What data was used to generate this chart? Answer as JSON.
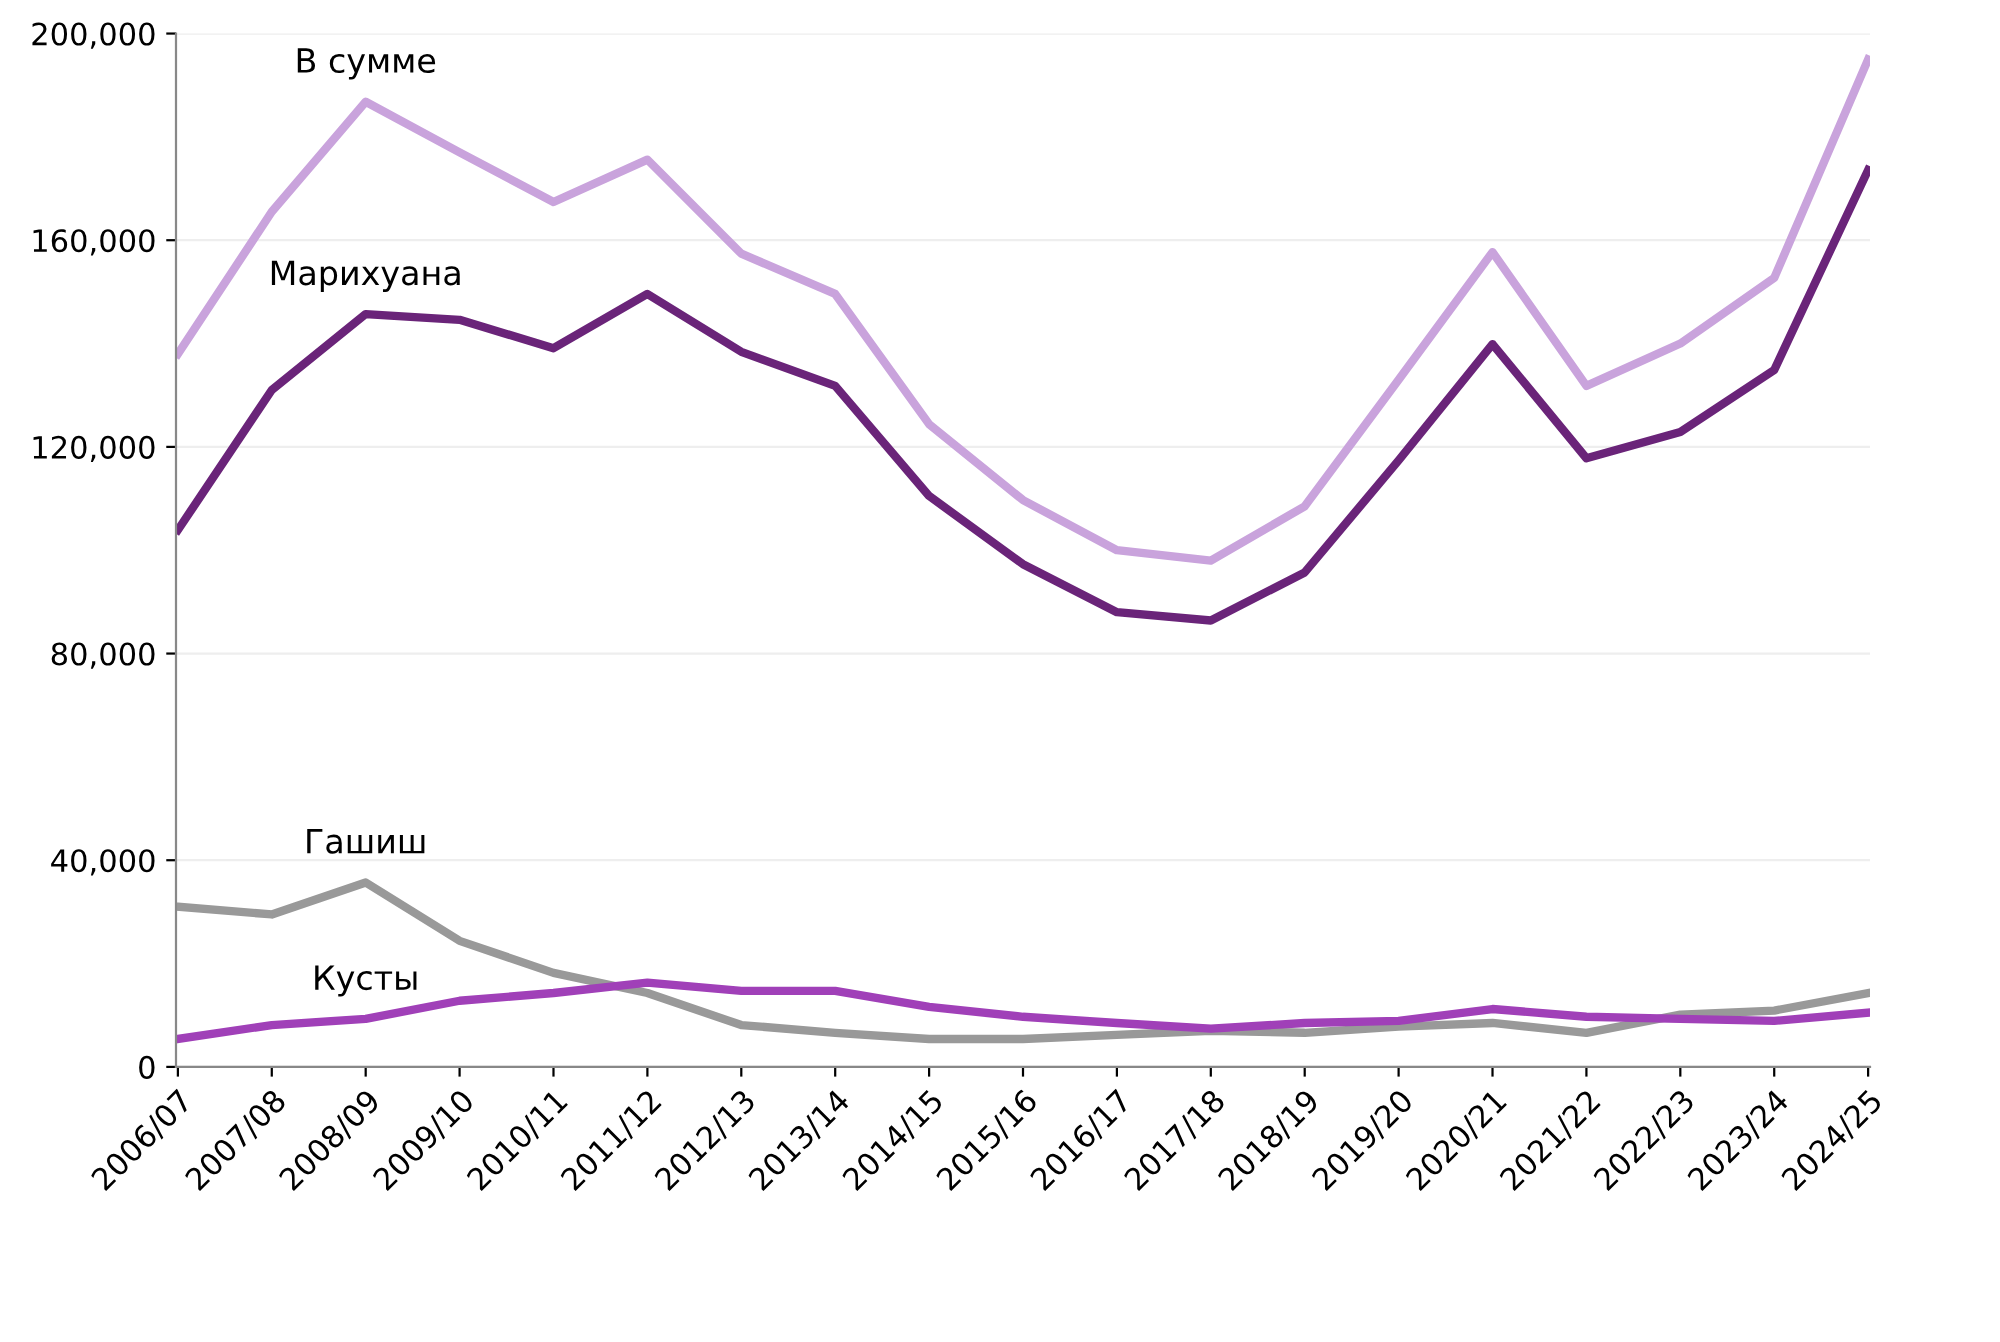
{
  "chart_data": {
    "type": "line",
    "categories": [
      "2006/07",
      "2007/08",
      "2008/09",
      "2009/10",
      "2010/11",
      "2011/12",
      "2012/13",
      "2013/14",
      "2014/15",
      "2015/16",
      "2016/17",
      "2017/18",
      "2018/19",
      "2019/20",
      "2020/21",
      "2021/22",
      "2022/23",
      "2023/24",
      "2024/25"
    ],
    "series": [
      {
        "name": "В сумме",
        "color": "#c9a3dc",
        "values": [
          138000,
          165500,
          186800,
          177000,
          167400,
          175600,
          157400,
          149600,
          124400,
          109700,
          100000,
          98000,
          108500,
          133000,
          157700,
          131800,
          140000,
          152700,
          195000
        ]
      },
      {
        "name": "Марихуана",
        "color": "#6a2479",
        "values": [
          103900,
          131000,
          145700,
          144600,
          139100,
          149600,
          138400,
          131800,
          110500,
          97300,
          88000,
          86400,
          95700,
          117400,
          139900,
          117800,
          122900,
          134900,
          173600
        ]
      },
      {
        "name": "Гашиш",
        "color": "#999999",
        "values": [
          31000,
          29500,
          35700,
          24400,
          18200,
          14300,
          8100,
          6600,
          5400,
          5400,
          6200,
          7000,
          6600,
          7800,
          8500,
          6600,
          10100,
          10900,
          14300
        ]
      },
      {
        "name": "Кусты",
        "color": "#a040b8",
        "values": [
          5400,
          8100,
          9300,
          12800,
          14300,
          16300,
          14700,
          14700,
          11600,
          9700,
          8500,
          7400,
          8500,
          8900,
          11200,
          9700,
          9300,
          8900,
          10500
        ]
      }
    ],
    "ylim": [
      0,
      200000
    ],
    "yticks": [
      {
        "value": 0,
        "label": "0"
      },
      {
        "value": 40000,
        "label": "40,000"
      },
      {
        "value": 80000,
        "label": "80,000"
      },
      {
        "value": 120000,
        "label": "120,000"
      },
      {
        "value": 160000,
        "label": "160,000"
      },
      {
        "value": 200000,
        "label": "200,000"
      }
    ],
    "grid": "y",
    "legend": false,
    "marker": "none",
    "line_style": "solid"
  }
}
